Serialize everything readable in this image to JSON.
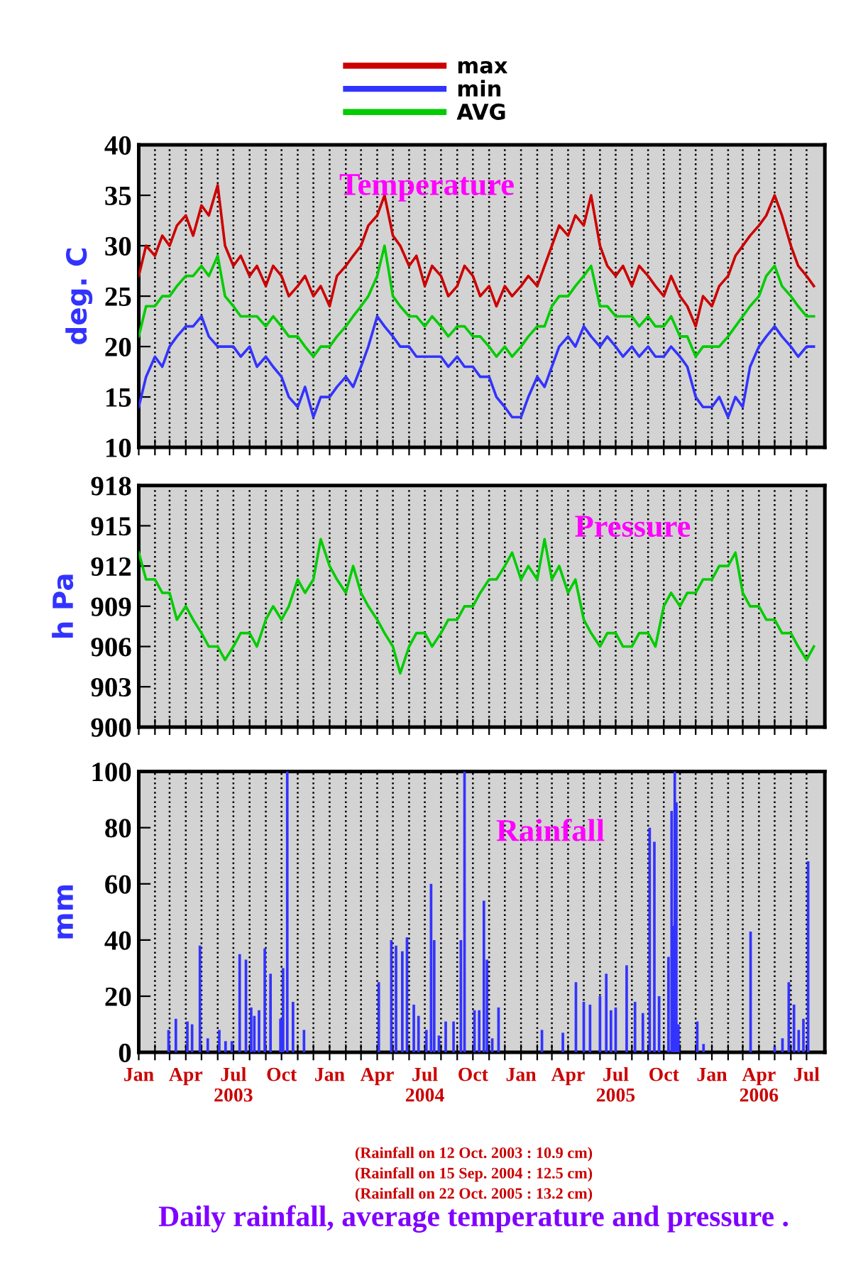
{
  "chart_data": [
    {
      "type": "line",
      "title": "Temperature",
      "ylabel": "deg. C",
      "legend": "top",
      "grid": "x",
      "tick_labels": "y",
      "xlim": [
        "2003-01-01",
        "2006-08-05"
      ],
      "ylim": [
        10,
        40
      ],
      "yticks": [
        10,
        15,
        20,
        25,
        30,
        35,
        40
      ],
      "xticks": [
        {
          "value": "2003-01-01",
          "label": null
        },
        {
          "value": "2003-02-01",
          "label": null
        },
        {
          "value": "2003-03-01",
          "label": null
        },
        {
          "value": "2003-04-01",
          "label": null
        },
        {
          "value": "2003-05-01",
          "label": null
        },
        {
          "value": "2003-06-01",
          "label": null
        },
        {
          "value": "2003-07-01",
          "label": null
        },
        {
          "value": "2003-08-01",
          "label": null
        },
        {
          "value": "2003-09-01",
          "label": null
        },
        {
          "value": "2003-10-01",
          "label": null
        },
        {
          "value": "2003-11-01",
          "label": null
        },
        {
          "value": "2003-12-01",
          "label": null
        },
        {
          "value": "2004-01-01",
          "label": null
        },
        {
          "value": "2004-02-01",
          "label": null
        },
        {
          "value": "2004-03-01",
          "label": null
        },
        {
          "value": "2004-04-01",
          "label": null
        },
        {
          "value": "2004-05-01",
          "label": null
        },
        {
          "value": "2004-06-01",
          "label": null
        },
        {
          "value": "2004-07-01",
          "label": null
        },
        {
          "value": "2004-08-01",
          "label": null
        },
        {
          "value": "2004-09-01",
          "label": null
        },
        {
          "value": "2004-10-01",
          "label": null
        },
        {
          "value": "2004-11-01",
          "label": null
        },
        {
          "value": "2004-12-01",
          "label": null
        },
        {
          "value": "2005-01-01",
          "label": null
        },
        {
          "value": "2005-02-01",
          "label": null
        },
        {
          "value": "2005-03-01",
          "label": null
        },
        {
          "value": "2005-04-01",
          "label": null
        },
        {
          "value": "2005-05-01",
          "label": null
        },
        {
          "value": "2005-06-01",
          "label": null
        },
        {
          "value": "2005-07-01",
          "label": null
        },
        {
          "value": "2005-08-01",
          "label": null
        },
        {
          "value": "2005-09-01",
          "label": null
        },
        {
          "value": "2005-10-01",
          "label": null
        },
        {
          "value": "2005-11-01",
          "label": null
        },
        {
          "value": "2005-12-01",
          "label": null
        },
        {
          "value": "2006-01-01",
          "label": null
        },
        {
          "value": "2006-02-01",
          "label": null
        },
        {
          "value": "2006-03-01",
          "label": null
        },
        {
          "value": "2006-04-01",
          "label": null
        },
        {
          "value": "2006-05-01",
          "label": null
        },
        {
          "value": "2006-06-01",
          "label": null
        },
        {
          "value": "2006-07-01",
          "label": null
        }
      ],
      "x": [
        "2003-01-01",
        "2003-01-15",
        "2003-02-01",
        "2003-02-15",
        "2003-03-01",
        "2003-03-15",
        "2003-04-01",
        "2003-04-15",
        "2003-05-01",
        "2003-05-15",
        "2003-06-01",
        "2003-06-15",
        "2003-07-01",
        "2003-07-15",
        "2003-08-01",
        "2003-08-15",
        "2003-09-01",
        "2003-09-15",
        "2003-10-01",
        "2003-10-15",
        "2003-11-01",
        "2003-11-15",
        "2003-12-01",
        "2003-12-15",
        "2004-01-01",
        "2004-01-15",
        "2004-02-01",
        "2004-02-15",
        "2004-03-01",
        "2004-03-15",
        "2004-04-01",
        "2004-04-15",
        "2004-05-01",
        "2004-05-15",
        "2004-06-01",
        "2004-06-15",
        "2004-07-01",
        "2004-07-15",
        "2004-08-01",
        "2004-08-15",
        "2004-09-01",
        "2004-09-15",
        "2004-10-01",
        "2004-10-15",
        "2004-11-01",
        "2004-11-15",
        "2004-12-01",
        "2004-12-15",
        "2005-01-01",
        "2005-01-15",
        "2005-02-01",
        "2005-02-15",
        "2005-03-01",
        "2005-03-15",
        "2005-04-01",
        "2005-04-15",
        "2005-05-01",
        "2005-05-15",
        "2005-06-01",
        "2005-06-15",
        "2005-07-01",
        "2005-07-15",
        "2005-08-01",
        "2005-08-15",
        "2005-09-01",
        "2005-09-15",
        "2005-10-01",
        "2005-10-15",
        "2005-11-01",
        "2005-11-15",
        "2005-12-01",
        "2005-12-15",
        "2006-01-01",
        "2006-01-15",
        "2006-02-01",
        "2006-02-15",
        "2006-03-01",
        "2006-03-15",
        "2006-04-01",
        "2006-04-15",
        "2006-05-01",
        "2006-05-15",
        "2006-06-01",
        "2006-06-15",
        "2006-07-01",
        "2006-07-15"
      ],
      "series": [
        {
          "name": "max",
          "color": "#cc0000",
          "values": [
            27,
            30,
            29,
            31,
            30,
            32,
            33,
            31,
            34,
            33,
            36,
            30,
            28,
            29,
            27,
            28,
            26,
            28,
            27,
            25,
            26,
            27,
            25,
            26,
            24,
            27,
            28,
            29,
            30,
            32,
            33,
            35,
            31,
            30,
            28,
            29,
            26,
            28,
            27,
            25,
            26,
            28,
            27,
            25,
            26,
            24,
            26,
            25,
            26,
            27,
            26,
            28,
            30,
            32,
            31,
            33,
            32,
            35,
            30,
            28,
            27,
            28,
            26,
            28,
            27,
            26,
            25,
            27,
            25,
            24,
            22,
            25,
            24,
            26,
            27,
            29,
            30,
            31,
            32,
            33,
            35,
            33,
            30,
            28,
            27,
            26
          ]
        },
        {
          "name": "min",
          "color": "#3333ff",
          "values": [
            14,
            17,
            19,
            18,
            20,
            21,
            22,
            22,
            23,
            21,
            20,
            20,
            20,
            19,
            20,
            18,
            19,
            18,
            17,
            15,
            14,
            16,
            13,
            15,
            15,
            16,
            17,
            16,
            18,
            20,
            23,
            22,
            21,
            20,
            20,
            19,
            19,
            19,
            19,
            18,
            19,
            18,
            18,
            17,
            17,
            15,
            14,
            13,
            13,
            15,
            17,
            16,
            18,
            20,
            21,
            20,
            22,
            21,
            20,
            21,
            20,
            19,
            20,
            19,
            20,
            19,
            19,
            20,
            19,
            18,
            15,
            14,
            14,
            15,
            13,
            15,
            14,
            18,
            20,
            21,
            22,
            21,
            20,
            19,
            20,
            20
          ]
        },
        {
          "name": "AVG",
          "color": "#00cc00",
          "values": [
            21,
            24,
            24,
            25,
            25,
            26,
            27,
            27,
            28,
            27,
            29,
            25,
            24,
            23,
            23,
            23,
            22,
            23,
            22,
            21,
            21,
            20,
            19,
            20,
            20,
            21,
            22,
            23,
            24,
            25,
            27,
            30,
            25,
            24,
            23,
            23,
            22,
            23,
            22,
            21,
            22,
            22,
            21,
            21,
            20,
            19,
            20,
            19,
            20,
            21,
            22,
            22,
            24,
            25,
            25,
            26,
            27,
            28,
            24,
            24,
            23,
            23,
            23,
            22,
            23,
            22,
            22,
            23,
            21,
            21,
            19,
            20,
            20,
            20,
            21,
            22,
            23,
            24,
            25,
            27,
            28,
            26,
            25,
            24,
            23,
            23
          ]
        }
      ]
    },
    {
      "type": "line",
      "title": "Pressure",
      "ylabel": "h Pa",
      "grid": "x",
      "tick_labels": "y",
      "color": "#00cc00",
      "xlim": [
        "2003-01-01",
        "2006-08-05"
      ],
      "ylim": [
        900,
        918
      ],
      "yticks": [
        900,
        903,
        906,
        909,
        912,
        915,
        918
      ],
      "xticks": [
        {
          "value": "2003-01-01",
          "label": null
        },
        {
          "value": "2003-02-01",
          "label": null
        },
        {
          "value": "2003-03-01",
          "label": null
        },
        {
          "value": "2003-04-01",
          "label": null
        },
        {
          "value": "2003-05-01",
          "label": null
        },
        {
          "value": "2003-06-01",
          "label": null
        },
        {
          "value": "2003-07-01",
          "label": null
        },
        {
          "value": "2003-08-01",
          "label": null
        },
        {
          "value": "2003-09-01",
          "label": null
        },
        {
          "value": "2003-10-01",
          "label": null
        },
        {
          "value": "2003-11-01",
          "label": null
        },
        {
          "value": "2003-12-01",
          "label": null
        },
        {
          "value": "2004-01-01",
          "label": null
        },
        {
          "value": "2004-02-01",
          "label": null
        },
        {
          "value": "2004-03-01",
          "label": null
        },
        {
          "value": "2004-04-01",
          "label": null
        },
        {
          "value": "2004-05-01",
          "label": null
        },
        {
          "value": "2004-06-01",
          "label": null
        },
        {
          "value": "2004-07-01",
          "label": null
        },
        {
          "value": "2004-08-01",
          "label": null
        },
        {
          "value": "2004-09-01",
          "label": null
        },
        {
          "value": "2004-10-01",
          "label": null
        },
        {
          "value": "2004-11-01",
          "label": null
        },
        {
          "value": "2004-12-01",
          "label": null
        },
        {
          "value": "2005-01-01",
          "label": null
        },
        {
          "value": "2005-02-01",
          "label": null
        },
        {
          "value": "2005-03-01",
          "label": null
        },
        {
          "value": "2005-04-01",
          "label": null
        },
        {
          "value": "2005-05-01",
          "label": null
        },
        {
          "value": "2005-06-01",
          "label": null
        },
        {
          "value": "2005-07-01",
          "label": null
        },
        {
          "value": "2005-08-01",
          "label": null
        },
        {
          "value": "2005-09-01",
          "label": null
        },
        {
          "value": "2005-10-01",
          "label": null
        },
        {
          "value": "2005-11-01",
          "label": null
        },
        {
          "value": "2005-12-01",
          "label": null
        },
        {
          "value": "2006-01-01",
          "label": null
        },
        {
          "value": "2006-02-01",
          "label": null
        },
        {
          "value": "2006-03-01",
          "label": null
        },
        {
          "value": "2006-04-01",
          "label": null
        },
        {
          "value": "2006-05-01",
          "label": null
        },
        {
          "value": "2006-06-01",
          "label": null
        },
        {
          "value": "2006-07-01",
          "label": null
        }
      ],
      "x": [
        "2003-01-01",
        "2003-01-15",
        "2003-02-01",
        "2003-02-15",
        "2003-03-01",
        "2003-03-15",
        "2003-04-01",
        "2003-04-15",
        "2003-05-01",
        "2003-05-15",
        "2003-06-01",
        "2003-06-15",
        "2003-07-01",
        "2003-07-15",
        "2003-08-01",
        "2003-08-15",
        "2003-09-01",
        "2003-09-15",
        "2003-10-01",
        "2003-10-15",
        "2003-11-01",
        "2003-11-15",
        "2003-12-01",
        "2003-12-15",
        "2004-01-01",
        "2004-01-15",
        "2004-02-01",
        "2004-02-15",
        "2004-03-01",
        "2004-03-15",
        "2004-04-01",
        "2004-04-15",
        "2004-05-01",
        "2004-05-15",
        "2004-06-01",
        "2004-06-15",
        "2004-07-01",
        "2004-07-15",
        "2004-08-01",
        "2004-08-15",
        "2004-09-01",
        "2004-09-15",
        "2004-10-01",
        "2004-10-15",
        "2004-11-01",
        "2004-11-15",
        "2004-12-01",
        "2004-12-15",
        "2005-01-01",
        "2005-01-15",
        "2005-02-01",
        "2005-02-15",
        "2005-03-01",
        "2005-03-15",
        "2005-04-01",
        "2005-04-15",
        "2005-05-01",
        "2005-05-15",
        "2005-06-01",
        "2005-06-15",
        "2005-07-01",
        "2005-07-15",
        "2005-08-01",
        "2005-08-15",
        "2005-09-01",
        "2005-09-15",
        "2005-10-01",
        "2005-10-15",
        "2005-11-01",
        "2005-11-15",
        "2005-12-01",
        "2005-12-15",
        "2006-01-01",
        "2006-01-15",
        "2006-02-01",
        "2006-02-15",
        "2006-03-01",
        "2006-03-15",
        "2006-04-01",
        "2006-04-15",
        "2006-05-01",
        "2006-05-15",
        "2006-06-01",
        "2006-06-15",
        "2006-07-01",
        "2006-07-15"
      ],
      "values": [
        913,
        911,
        911,
        910,
        910,
        908,
        909,
        908,
        907,
        906,
        906,
        905,
        906,
        907,
        907,
        906,
        908,
        909,
        908,
        909,
        911,
        910,
        911,
        914,
        912,
        911,
        910,
        912,
        910,
        909,
        908,
        907,
        906,
        904,
        906,
        907,
        907,
        906,
        907,
        908,
        908,
        909,
        909,
        910,
        911,
        911,
        912,
        913,
        911,
        912,
        911,
        914,
        911,
        912,
        910,
        911,
        908,
        907,
        906,
        907,
        907,
        906,
        906,
        907,
        907,
        906,
        909,
        910,
        909,
        910,
        910,
        911,
        911,
        912,
        912,
        913,
        910,
        909,
        909,
        908,
        908,
        907,
        907,
        906,
        905,
        906
      ]
    },
    {
      "type": "bar",
      "title": "Rainfall",
      "ylabel": "mm",
      "grid": "x",
      "color": "#3333ff",
      "xlim": [
        "2003-01-01",
        "2006-08-05"
      ],
      "ylim": [
        0,
        100
      ],
      "yticks": [
        0,
        20,
        40,
        60,
        80,
        100
      ],
      "xticks": [
        {
          "value": "2003-01-01",
          "label": "Jan"
        },
        {
          "value": "2003-02-01",
          "label": null
        },
        {
          "value": "2003-03-01",
          "label": null
        },
        {
          "value": "2003-04-01",
          "label": "Apr"
        },
        {
          "value": "2003-05-01",
          "label": null
        },
        {
          "value": "2003-06-01",
          "label": null
        },
        {
          "value": "2003-07-01",
          "label": "Jul\n2003"
        },
        {
          "value": "2003-08-01",
          "label": null
        },
        {
          "value": "2003-09-01",
          "label": null
        },
        {
          "value": "2003-10-01",
          "label": "Oct"
        },
        {
          "value": "2003-11-01",
          "label": null
        },
        {
          "value": "2003-12-01",
          "label": null
        },
        {
          "value": "2004-01-01",
          "label": "Jan"
        },
        {
          "value": "2004-02-01",
          "label": null
        },
        {
          "value": "2004-03-01",
          "label": null
        },
        {
          "value": "2004-04-01",
          "label": "Apr"
        },
        {
          "value": "2004-05-01",
          "label": null
        },
        {
          "value": "2004-06-01",
          "label": null
        },
        {
          "value": "2004-07-01",
          "label": "Jul\n2004"
        },
        {
          "value": "2004-08-01",
          "label": null
        },
        {
          "value": "2004-09-01",
          "label": null
        },
        {
          "value": "2004-10-01",
          "label": "Oct"
        },
        {
          "value": "2004-11-01",
          "label": null
        },
        {
          "value": "2004-12-01",
          "label": null
        },
        {
          "value": "2005-01-01",
          "label": "Jan"
        },
        {
          "value": "2005-02-01",
          "label": null
        },
        {
          "value": "2005-03-01",
          "label": null
        },
        {
          "value": "2005-04-01",
          "label": "Apr"
        },
        {
          "value": "2005-05-01",
          "label": null
        },
        {
          "value": "2005-06-01",
          "label": null
        },
        {
          "value": "2005-07-01",
          "label": "Jul\n2005"
        },
        {
          "value": "2005-08-01",
          "label": null
        },
        {
          "value": "2005-09-01",
          "label": null
        },
        {
          "value": "2005-10-01",
          "label": "Oct"
        },
        {
          "value": "2005-11-01",
          "label": null
        },
        {
          "value": "2005-12-01",
          "label": null
        },
        {
          "value": "2006-01-01",
          "label": "Jan"
        },
        {
          "value": "2006-02-01",
          "label": null
        },
        {
          "value": "2006-03-01",
          "label": null
        },
        {
          "value": "2006-04-01",
          "label": "Apr\n2006"
        },
        {
          "value": "2006-05-01",
          "label": null
        },
        {
          "value": "2006-06-01",
          "label": null
        },
        {
          "value": "2006-07-01",
          "label": "Jul"
        }
      ],
      "x": [
        "2003-02-27",
        "2003-03-13",
        "2003-04-04",
        "2003-04-13",
        "2003-04-28",
        "2003-05-13",
        "2003-06-04",
        "2003-06-16",
        "2003-06-28",
        "2003-07-13",
        "2003-07-25",
        "2003-08-04",
        "2003-08-10",
        "2003-08-19",
        "2003-08-30",
        "2003-09-10",
        "2003-09-29",
        "2003-10-04",
        "2003-10-12",
        "2003-10-23",
        "2003-11-13",
        "2004-04-04",
        "2004-04-28",
        "2004-05-07",
        "2004-05-19",
        "2004-05-28",
        "2004-06-10",
        "2004-06-19",
        "2004-07-04",
        "2004-07-13",
        "2004-07-19",
        "2004-07-28",
        "2004-08-10",
        "2004-08-25",
        "2004-09-08",
        "2004-09-15",
        "2004-10-04",
        "2004-10-13",
        "2004-10-22",
        "2004-10-28",
        "2004-11-07",
        "2004-11-19",
        "2005-02-10",
        "2005-03-22",
        "2005-04-16",
        "2005-05-01",
        "2005-05-13",
        "2005-06-01",
        "2005-06-13",
        "2005-06-22",
        "2005-07-01",
        "2005-07-22",
        "2005-08-07",
        "2005-08-22",
        "2005-09-04",
        "2005-09-13",
        "2005-09-22",
        "2005-10-10",
        "2005-10-16",
        "2005-10-20",
        "2005-10-22",
        "2005-10-25",
        "2005-10-29",
        "2005-12-04",
        "2005-12-16",
        "2006-03-16",
        "2006-05-01",
        "2006-05-16",
        "2006-05-28",
        "2006-06-07",
        "2006-06-16",
        "2006-06-25",
        "2006-07-04"
      ],
      "values": [
        8,
        12,
        11,
        10,
        38,
        5,
        8,
        4,
        4,
        35,
        33,
        16,
        13,
        15,
        37,
        28,
        12,
        30,
        100,
        18,
        8,
        25,
        40,
        38,
        36,
        41,
        17,
        13,
        8,
        60,
        40,
        6,
        11,
        11,
        40,
        100,
        15,
        15,
        54,
        33,
        5,
        16,
        8,
        7,
        25,
        18,
        17,
        20,
        28,
        15,
        16,
        31,
        18,
        14,
        80,
        75,
        20,
        34,
        86,
        45,
        100,
        89,
        10,
        11,
        3,
        43,
        2,
        5,
        25,
        17,
        8,
        12,
        68
      ],
      "annotations": [
        "(Rainfall on 12 Oct. 2003 : 10.9 cm)",
        "(Rainfall on 15 Sep. 2004 : 12.5 cm)",
        "(Rainfall on 22 Oct. 2005 : 13.2 cm)",
        "Daily rainfall, average temperature and pressure ."
      ]
    }
  ]
}
